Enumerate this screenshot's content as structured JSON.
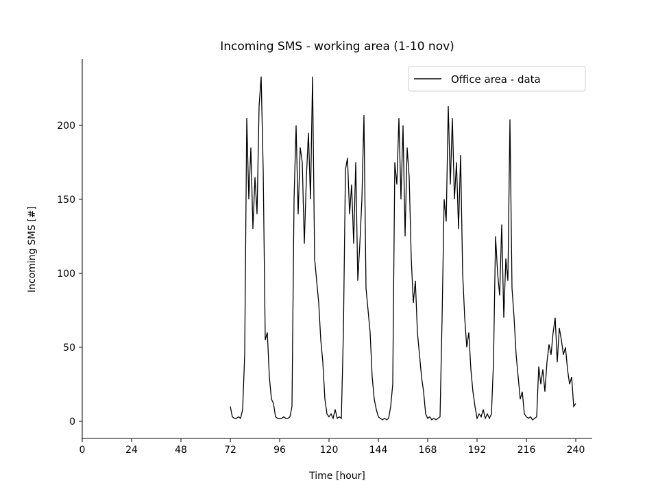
{
  "chart_data": {
    "type": "line",
    "title": "Incoming SMS - working area (1-10 nov)",
    "x_label": "Time [hour]",
    "y_label": "Incoming SMS [#]",
    "xlim": [
      0,
      248
    ],
    "ylim": [
      -11.6,
      244.9
    ],
    "xticks": [
      0,
      24,
      48,
      72,
      96,
      120,
      144,
      168,
      192,
      216,
      240
    ],
    "yticks": [
      0,
      50,
      100,
      150,
      200
    ],
    "legend": "upper right",
    "grid": false,
    "x": [
      72,
      73,
      74,
      75,
      76,
      77,
      78,
      79,
      80,
      81,
      82,
      83,
      84,
      85,
      86,
      87,
      88,
      89,
      90,
      91,
      92,
      93,
      94,
      95,
      96,
      97,
      98,
      99,
      100,
      101,
      102,
      103,
      104,
      105,
      106,
      107,
      108,
      109,
      110,
      111,
      112,
      113,
      114,
      115,
      116,
      117,
      118,
      119,
      120,
      121,
      122,
      123,
      124,
      125,
      126,
      127,
      128,
      129,
      130,
      131,
      132,
      133,
      134,
      135,
      136,
      137,
      138,
      139,
      140,
      141,
      142,
      143,
      144,
      145,
      146,
      147,
      148,
      149,
      150,
      151,
      152,
      153,
      154,
      155,
      156,
      157,
      158,
      159,
      160,
      161,
      162,
      163,
      164,
      165,
      166,
      167,
      168,
      169,
      170,
      171,
      172,
      173,
      174,
      175,
      176,
      177,
      178,
      179,
      180,
      181,
      182,
      183,
      184,
      185,
      186,
      187,
      188,
      189,
      190,
      191,
      192,
      193,
      194,
      195,
      196,
      197,
      198,
      199,
      200,
      201,
      202,
      203,
      204,
      205,
      206,
      207,
      208,
      209,
      210,
      211,
      212,
      213,
      214,
      215,
      216,
      217,
      218,
      219,
      220,
      221,
      222,
      223,
      224,
      225,
      226,
      227,
      228,
      229,
      230,
      231,
      232,
      233,
      234,
      235,
      236,
      237,
      238,
      239,
      240
    ],
    "series": [
      {
        "name": "Office area - data",
        "color": "#000000",
        "values": [
          10,
          3,
          2,
          2,
          3,
          2,
          8,
          45,
          205,
          150,
          185,
          130,
          165,
          140,
          213,
          233,
          170,
          55,
          60,
          30,
          15,
          12,
          3,
          2,
          2,
          2,
          3,
          2,
          2,
          3,
          10,
          150,
          200,
          140,
          185,
          175,
          120,
          165,
          195,
          150,
          233,
          110,
          95,
          80,
          55,
          40,
          15,
          5,
          3,
          5,
          2,
          8,
          2,
          3,
          2,
          60,
          170,
          178,
          140,
          160,
          120,
          175,
          95,
          120,
          150,
          207,
          90,
          75,
          60,
          30,
          15,
          8,
          3,
          2,
          1,
          2,
          1,
          2,
          10,
          25,
          175,
          160,
          205,
          150,
          200,
          125,
          185,
          165,
          110,
          80,
          95,
          60,
          45,
          30,
          20,
          5,
          2,
          3,
          1,
          2,
          1,
          2,
          3,
          70,
          150,
          135,
          213,
          160,
          205,
          150,
          175,
          130,
          180,
          100,
          70,
          50,
          60,
          35,
          20,
          10,
          2,
          5,
          3,
          8,
          2,
          5,
          2,
          5,
          40,
          125,
          100,
          85,
          133,
          70,
          110,
          95,
          204,
          90,
          70,
          45,
          30,
          15,
          20,
          5,
          3,
          2,
          3,
          1,
          2,
          3,
          37,
          25,
          35,
          20,
          40,
          52,
          45,
          60,
          70,
          40,
          63,
          55,
          45,
          50,
          35,
          25,
          30,
          10,
          12
        ]
      }
    ]
  }
}
